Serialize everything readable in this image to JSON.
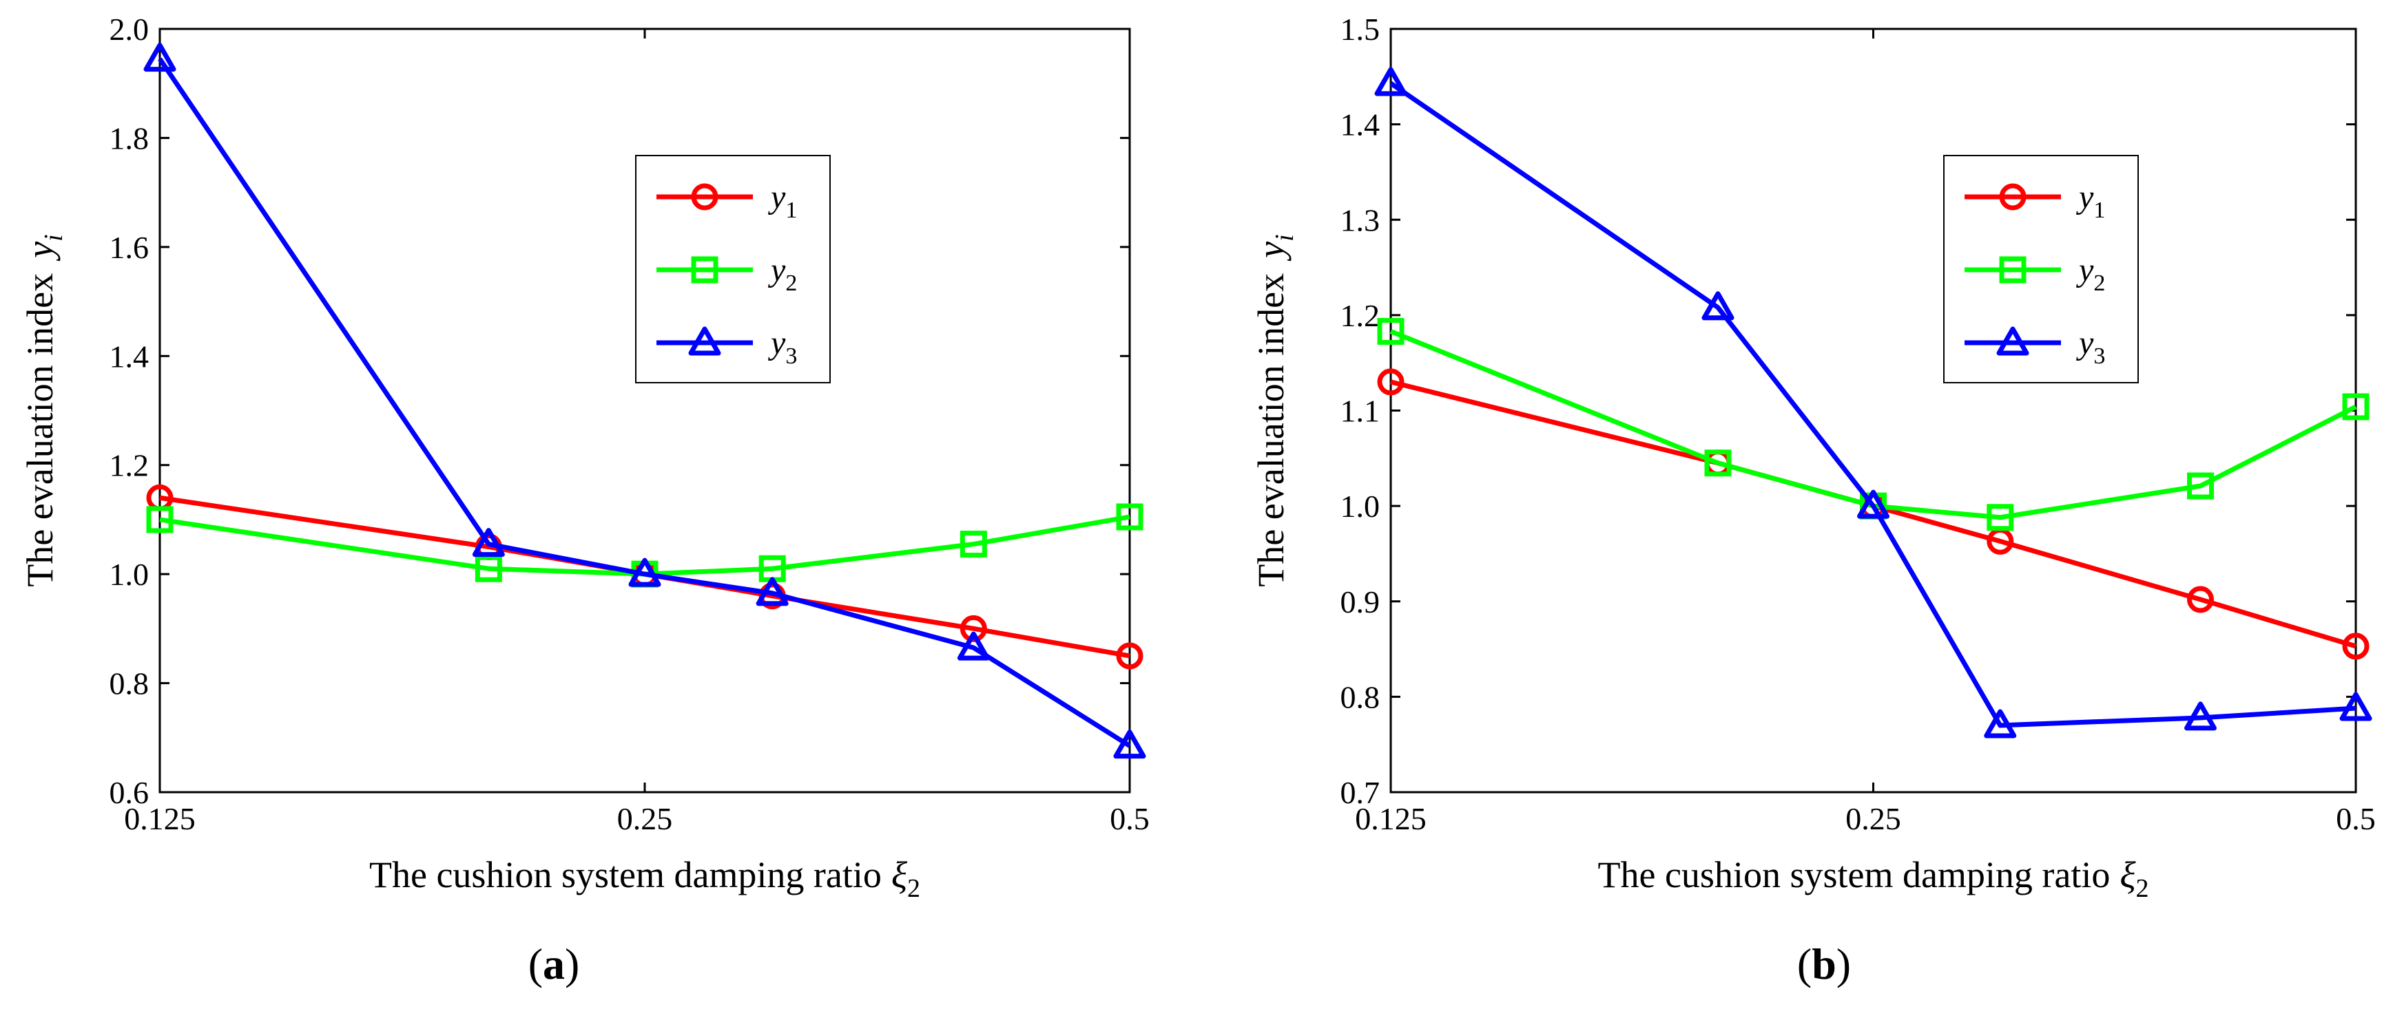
{
  "colors": {
    "y1": "#ff0000",
    "y2": "#00ff00",
    "y3": "#0000ff"
  },
  "chart_data": [
    {
      "type": "line",
      "panel_label": "a",
      "xlabel": "The cushion system damping ratio",
      "xlabel_symbol": "ξ",
      "xlabel_sub": "2",
      "ylabel": "The evaluation index",
      "ylabel_symbol": "y",
      "ylabel_sub": "i",
      "x_scale": "log2",
      "xlim": [
        0.125,
        0.5
      ],
      "ylim": [
        0.6,
        2.0
      ],
      "x_ticks": [
        0.125,
        0.25,
        0.5
      ],
      "x_tick_labels": [
        "0.125",
        "0.25",
        "0.5"
      ],
      "y_ticks": [
        0.6,
        0.8,
        1.0,
        1.2,
        1.4,
        1.6,
        1.8,
        2.0
      ],
      "y_tick_labels": [
        "0.6",
        "0.8",
        "1.0",
        "1.2",
        "1.4",
        "1.6",
        "1.8",
        "2.0"
      ],
      "x": [
        0.125,
        0.2,
        0.25,
        0.3,
        0.4,
        0.5
      ],
      "legend_position": "upper-right",
      "series": [
        {
          "name": "y1",
          "label": "y",
          "sub": "1",
          "marker": "circle",
          "values": [
            1.14,
            1.05,
            1.0,
            0.96,
            0.9,
            0.85
          ]
        },
        {
          "name": "y2",
          "label": "y",
          "sub": "2",
          "marker": "square",
          "values": [
            1.1,
            1.01,
            1.0,
            1.01,
            1.055,
            1.105
          ]
        },
        {
          "name": "y3",
          "label": "y",
          "sub": "3",
          "marker": "triangle",
          "values": [
            1.945,
            1.055,
            1.0,
            0.965,
            0.865,
            0.685
          ]
        }
      ]
    },
    {
      "type": "line",
      "panel_label": "b",
      "xlabel": "The cushion system damping ratio",
      "xlabel_symbol": "ξ",
      "xlabel_sub": "2",
      "ylabel": "The evaluation index",
      "ylabel_symbol": "y",
      "ylabel_sub": "i",
      "x_scale": "log2",
      "xlim": [
        0.125,
        0.5
      ],
      "ylim": [
        0.7,
        1.5
      ],
      "x_ticks": [
        0.125,
        0.25,
        0.5
      ],
      "x_tick_labels": [
        "0.125",
        "0.25",
        "0.5"
      ],
      "y_ticks": [
        0.7,
        0.8,
        0.9,
        1.0,
        1.1,
        1.2,
        1.3,
        1.4,
        1.5
      ],
      "y_tick_labels": [
        "0.7",
        "0.8",
        "0.9",
        "1.0",
        "1.1",
        "1.2",
        "1.3",
        "1.4",
        "1.5"
      ],
      "x": [
        0.125,
        0.2,
        0.25,
        0.3,
        0.4,
        0.5
      ],
      "legend_position": "upper-right",
      "series": [
        {
          "name": "y1",
          "label": "y",
          "sub": "1",
          "marker": "circle",
          "values": [
            1.13,
            1.045,
            1.0,
            0.963,
            0.902,
            0.853
          ]
        },
        {
          "name": "y2",
          "label": "y",
          "sub": "2",
          "marker": "square",
          "values": [
            1.183,
            1.045,
            1.0,
            0.988,
            1.021,
            1.104
          ]
        },
        {
          "name": "y3",
          "label": "y",
          "sub": "3",
          "marker": "triangle",
          "values": [
            1.443,
            1.208,
            1.0,
            0.77,
            0.778,
            0.788
          ]
        }
      ]
    }
  ]
}
